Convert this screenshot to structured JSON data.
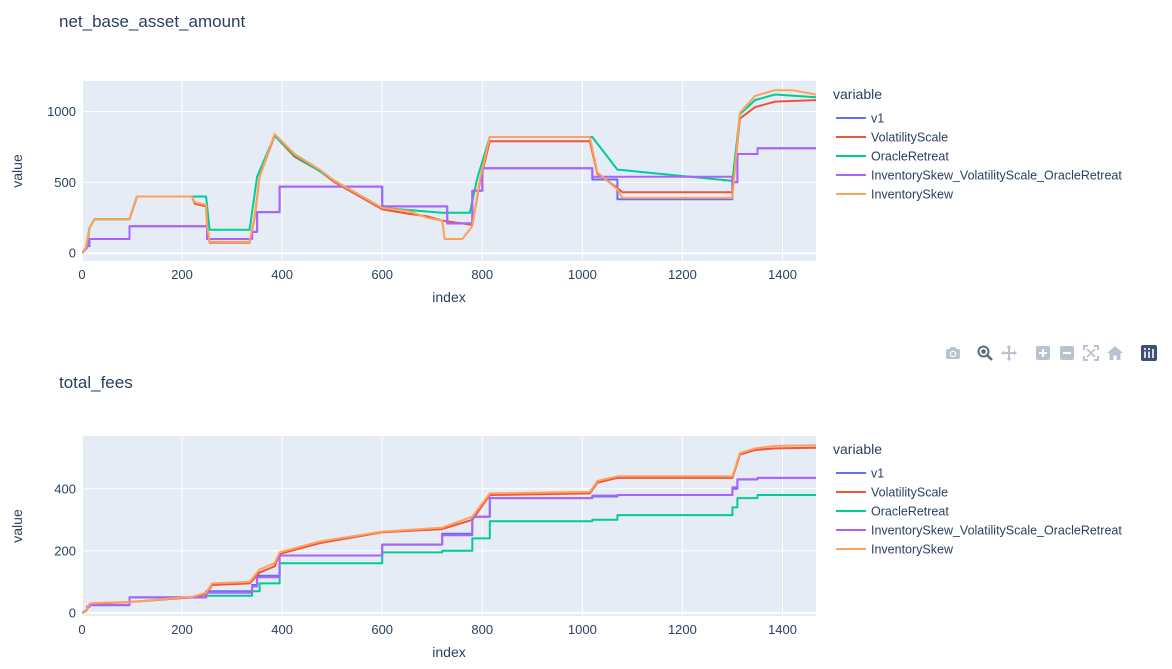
{
  "modebar": {
    "icons": [
      "camera-icon",
      "zoom-icon",
      "pan-icon",
      "zoom-in-icon",
      "zoom-out-icon",
      "autoscale-icon",
      "reset-axes-icon",
      "plotly-logo-icon"
    ]
  },
  "chart_data": [
    {
      "type": "line",
      "title": "net_base_asset_amount",
      "xlabel": "index",
      "ylabel": "value",
      "xlim": [
        0,
        1467
      ],
      "ylim": [
        -55,
        1215
      ],
      "xticks": [
        0,
        200,
        400,
        600,
        800,
        1000,
        1200,
        1400
      ],
      "xtick_labels": [
        "0",
        "200",
        "400",
        "600",
        "800",
        "1000",
        "1200",
        "1400"
      ],
      "yticks": [
        0,
        500,
        1000
      ],
      "ytick_labels": [
        "0",
        "500",
        "1000"
      ],
      "legend_title": "variable",
      "legend_position": "right",
      "grid": true,
      "plot_bgcolor": "#e5ecf6",
      "series": [
        {
          "name": "v1",
          "color": "#636efa",
          "x": [
            0,
            10,
            10,
            15,
            15,
            95,
            95,
            248,
            248,
            250,
            250,
            340,
            340,
            350,
            350,
            395,
            395,
            600,
            600,
            720,
            720,
            730,
            730,
            780,
            780,
            800,
            800,
            815,
            815,
            1020,
            1020,
            1070,
            1070,
            1300,
            1300,
            1310,
            1310,
            1350,
            1350,
            1467
          ],
          "y": [
            0,
            40,
            50,
            50,
            100,
            100,
            190,
            190,
            195,
            195,
            100,
            100,
            150,
            150,
            290,
            290,
            470,
            470,
            330,
            330,
            330,
            330,
            210,
            210,
            440,
            440,
            600,
            600,
            600,
            600,
            520,
            520,
            380,
            380,
            500,
            500,
            700,
            700,
            740,
            740
          ]
        },
        {
          "name": "VolatilityScale",
          "color": "#ef553b",
          "x": [
            0,
            8,
            8,
            15,
            15,
            25,
            25,
            95,
            95,
            110,
            110,
            220,
            220,
            225,
            225,
            248,
            248,
            250,
            250,
            255,
            255,
            335,
            335,
            345,
            345,
            355,
            355,
            385,
            385,
            425,
            425,
            475,
            475,
            505,
            505,
            600,
            600,
            650,
            650,
            690,
            690,
            720,
            720,
            780,
            780,
            795,
            795,
            815,
            815,
            1015,
            1015,
            1030,
            1030,
            1070,
            1070,
            1080,
            1080,
            1300,
            1300,
            1315,
            1315,
            1345,
            1345,
            1385,
            1385,
            1467
          ],
          "y": [
            0,
            40,
            40,
            180,
            180,
            240,
            240,
            240,
            240,
            400,
            400,
            400,
            400,
            350,
            350,
            330,
            330,
            200,
            200,
            75,
            75,
            75,
            75,
            250,
            250,
            540,
            540,
            830,
            830,
            680,
            680,
            580,
            580,
            500,
            500,
            310,
            310,
            280,
            280,
            260,
            260,
            230,
            230,
            200,
            200,
            500,
            500,
            790,
            790,
            790,
            790,
            560,
            560,
            460,
            460,
            430,
            430,
            430,
            430,
            950,
            950,
            1030,
            1030,
            1070,
            1070,
            1080
          ]
        },
        {
          "name": "OracleRetreat",
          "color": "#00cc96",
          "x": [
            0,
            10,
            10,
            15,
            15,
            25,
            25,
            95,
            95,
            110,
            110,
            248,
            248,
            255,
            255,
            335,
            335,
            350,
            350,
            385,
            385,
            425,
            425,
            475,
            475,
            505,
            505,
            600,
            600,
            720,
            720,
            775,
            775,
            790,
            790,
            815,
            815,
            1020,
            1020,
            1070,
            1070,
            1300,
            1300,
            1315,
            1315,
            1345,
            1345,
            1385,
            1385,
            1467
          ],
          "y": [
            0,
            40,
            40,
            180,
            180,
            240,
            240,
            240,
            240,
            400,
            400,
            400,
            400,
            165,
            165,
            165,
            165,
            540,
            540,
            830,
            830,
            690,
            690,
            580,
            580,
            510,
            510,
            320,
            320,
            285,
            285,
            285,
            285,
            530,
            530,
            820,
            820,
            820,
            820,
            590,
            590,
            510,
            510,
            980,
            980,
            1080,
            1080,
            1120,
            1120,
            1100
          ]
        },
        {
          "name": "InventorySkew_VolatilityScale_OracleRetreat",
          "color": "#ab63fa",
          "x": [
            0,
            10,
            10,
            15,
            15,
            95,
            95,
            248,
            248,
            250,
            250,
            340,
            340,
            350,
            350,
            395,
            395,
            600,
            600,
            720,
            720,
            730,
            730,
            780,
            780,
            800,
            800,
            815,
            815,
            1020,
            1020,
            1070,
            1070,
            1300,
            1300,
            1310,
            1310,
            1350,
            1350,
            1467
          ],
          "y": [
            0,
            40,
            50,
            50,
            100,
            100,
            190,
            190,
            195,
            195,
            100,
            100,
            150,
            150,
            290,
            290,
            470,
            470,
            330,
            330,
            330,
            330,
            210,
            210,
            440,
            440,
            600,
            600,
            600,
            600,
            540,
            540,
            540,
            540,
            500,
            500,
            700,
            700,
            740,
            740
          ]
        },
        {
          "name": "InventorySkew",
          "color": "#ffa15a",
          "x": [
            0,
            8,
            8,
            15,
            15,
            25,
            25,
            95,
            95,
            110,
            110,
            220,
            220,
            225,
            225,
            248,
            248,
            250,
            250,
            255,
            255,
            335,
            335,
            345,
            345,
            355,
            355,
            385,
            385,
            425,
            425,
            475,
            475,
            505,
            505,
            600,
            600,
            650,
            650,
            690,
            690,
            720,
            720,
            725,
            725,
            760,
            760,
            780,
            780,
            795,
            795,
            815,
            815,
            1015,
            1015,
            1030,
            1030,
            1070,
            1070,
            1080,
            1080,
            1300,
            1300,
            1315,
            1315,
            1345,
            1345,
            1385,
            1385,
            1420,
            1420,
            1467
          ],
          "y": [
            0,
            40,
            40,
            180,
            180,
            240,
            240,
            240,
            240,
            400,
            400,
            400,
            400,
            360,
            360,
            340,
            340,
            200,
            200,
            80,
            80,
            80,
            80,
            260,
            260,
            540,
            540,
            840,
            840,
            700,
            700,
            590,
            590,
            510,
            510,
            320,
            320,
            300,
            300,
            250,
            250,
            230,
            230,
            100,
            100,
            100,
            100,
            190,
            190,
            520,
            520,
            820,
            820,
            820,
            820,
            570,
            570,
            450,
            450,
            390,
            390,
            390,
            390,
            990,
            990,
            1110,
            1110,
            1150,
            1150,
            1150,
            1150,
            1120
          ]
        }
      ]
    },
    {
      "type": "line",
      "title": "total_fees",
      "xlabel": "index",
      "ylabel": "value",
      "xlim": [
        0,
        1467
      ],
      "ylim": [
        -10,
        570
      ],
      "xticks": [
        0,
        200,
        400,
        600,
        800,
        1000,
        1200,
        1400
      ],
      "xtick_labels": [
        "0",
        "200",
        "400",
        "600",
        "800",
        "1000",
        "1200",
        "1400"
      ],
      "yticks": [
        0,
        200,
        400
      ],
      "ytick_labels": [
        "0",
        "200",
        "400"
      ],
      "legend_title": "variable",
      "legend_position": "right",
      "grid": true,
      "plot_bgcolor": "#e5ecf6",
      "series": [
        {
          "name": "v1",
          "color": "#636efa",
          "x": [
            0,
            10,
            10,
            15,
            15,
            95,
            95,
            248,
            248,
            340,
            340,
            350,
            350,
            395,
            395,
            600,
            600,
            720,
            720,
            780,
            780,
            815,
            815,
            1020,
            1020,
            1070,
            1070,
            1300,
            1300,
            1310,
            1310,
            1350,
            1350,
            1467
          ],
          "y": [
            0,
            10,
            20,
            20,
            25,
            25,
            50,
            50,
            70,
            70,
            90,
            90,
            120,
            120,
            185,
            185,
            220,
            220,
            255,
            255,
            310,
            310,
            370,
            370,
            375,
            375,
            380,
            380,
            400,
            400,
            430,
            430,
            435,
            435
          ]
        },
        {
          "name": "VolatilityScale",
          "color": "#ef553b",
          "x": [
            0,
            8,
            8,
            15,
            15,
            25,
            25,
            95,
            95,
            220,
            220,
            248,
            248,
            260,
            260,
            335,
            335,
            355,
            355,
            385,
            385,
            395,
            395,
            475,
            475,
            600,
            600,
            720,
            720,
            780,
            780,
            815,
            815,
            1015,
            1015,
            1030,
            1030,
            1070,
            1070,
            1300,
            1300,
            1315,
            1315,
            1345,
            1345,
            1385,
            1385,
            1467
          ],
          "y": [
            0,
            5,
            5,
            25,
            25,
            30,
            30,
            35,
            35,
            50,
            50,
            60,
            60,
            90,
            90,
            95,
            95,
            130,
            130,
            150,
            150,
            190,
            190,
            225,
            225,
            260,
            260,
            270,
            270,
            300,
            300,
            380,
            380,
            385,
            385,
            420,
            420,
            435,
            435,
            435,
            435,
            510,
            510,
            525,
            525,
            530,
            530,
            532
          ]
        },
        {
          "name": "OracleRetreat",
          "color": "#00cc96",
          "x": [
            0,
            10,
            10,
            15,
            15,
            95,
            95,
            248,
            248,
            340,
            340,
            355,
            355,
            395,
            395,
            600,
            600,
            720,
            720,
            780,
            780,
            815,
            815,
            1020,
            1020,
            1070,
            1070,
            1300,
            1300,
            1310,
            1310,
            1350,
            1350,
            1467
          ],
          "y": [
            0,
            10,
            20,
            20,
            25,
            25,
            50,
            50,
            55,
            55,
            70,
            70,
            95,
            95,
            160,
            160,
            195,
            195,
            200,
            200,
            240,
            240,
            295,
            295,
            300,
            300,
            315,
            315,
            340,
            340,
            370,
            370,
            380,
            380
          ]
        },
        {
          "name": "InventorySkew_VolatilityScale_OracleRetreat",
          "color": "#ab63fa",
          "x": [
            0,
            10,
            10,
            15,
            15,
            95,
            95,
            248,
            248,
            340,
            340,
            350,
            350,
            395,
            395,
            600,
            600,
            720,
            720,
            780,
            780,
            815,
            815,
            1020,
            1020,
            1070,
            1070,
            1300,
            1300,
            1310,
            1310,
            1350,
            1350,
            1467
          ],
          "y": [
            0,
            10,
            20,
            20,
            25,
            25,
            50,
            50,
            65,
            65,
            85,
            85,
            115,
            115,
            185,
            185,
            220,
            220,
            250,
            250,
            310,
            310,
            370,
            370,
            378,
            378,
            380,
            380,
            405,
            405,
            430,
            430,
            435,
            435
          ]
        },
        {
          "name": "InventorySkew",
          "color": "#ffa15a",
          "x": [
            0,
            8,
            8,
            15,
            15,
            25,
            25,
            95,
            95,
            220,
            220,
            248,
            248,
            260,
            260,
            335,
            335,
            355,
            355,
            385,
            385,
            395,
            395,
            475,
            475,
            600,
            600,
            720,
            720,
            780,
            780,
            815,
            815,
            1015,
            1015,
            1030,
            1030,
            1070,
            1070,
            1300,
            1300,
            1315,
            1315,
            1345,
            1345,
            1385,
            1385,
            1467
          ],
          "y": [
            0,
            5,
            5,
            30,
            30,
            32,
            32,
            35,
            35,
            52,
            52,
            65,
            65,
            95,
            95,
            100,
            100,
            140,
            140,
            160,
            160,
            195,
            195,
            230,
            230,
            262,
            262,
            275,
            275,
            310,
            310,
            385,
            385,
            390,
            390,
            425,
            425,
            440,
            440,
            440,
            440,
            515,
            515,
            530,
            530,
            538,
            538,
            540
          ]
        }
      ]
    }
  ]
}
